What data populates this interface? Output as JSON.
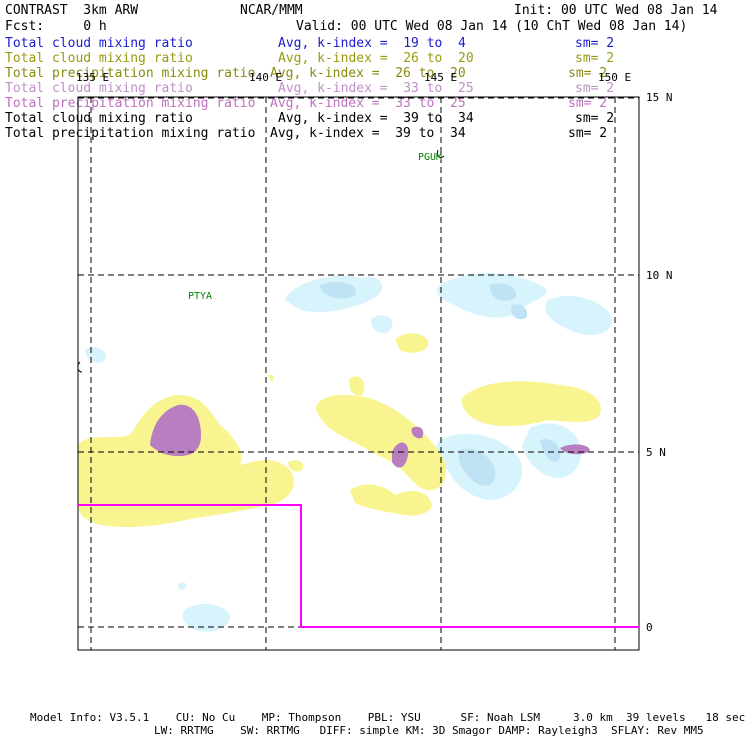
{
  "header": {
    "left_title": "CONTRAST  3km ARW",
    "center_title": "NCAR/MMM",
    "init": "Init: 00 UTC Wed 08 Jan 14",
    "fcst": "Fcst:     0 h",
    "valid": "Valid: 00 UTC Wed 08 Jan 14 (10 ChT Wed 08 Jan 14)"
  },
  "legend": [
    {
      "name": "Total cloud mixing ratio",
      "range": "Avg, k-index =  19 to  4",
      "sm": "sm= 2",
      "color": "#1a1ad0"
    },
    {
      "name": "Total cloud mixing ratio",
      "range": "Avg, k-index =  26 to  20",
      "sm": "sm= 2",
      "color": "#9a9a10"
    },
    {
      "name": "Total precipitation mixing ratio",
      "range": "Avg, k-index =  26 to  20",
      "sm": "sm= 2",
      "color": "#8a8a10"
    },
    {
      "name": "Total cloud mixing ratio",
      "range": "Avg, k-index =  33 to  25",
      "sm": "sm= 2",
      "color": "#c090c8"
    },
    {
      "name": "Total precipitation mixing ratio",
      "range": "Avg, k-index =  33 to  25",
      "sm": "sm= 2",
      "color": "#c070c0"
    },
    {
      "name": "Total cloud mixing ratio",
      "range": "Avg, k-index =  39 to  34",
      "sm": "sm= 2",
      "color": "#000000"
    },
    {
      "name": "Total precipitation mixing ratio",
      "range": "Avg, k-index =  39 to  34",
      "sm": "sm= 2",
      "color": "#000000"
    }
  ],
  "axes": {
    "lon_labels": [
      "135 E",
      "140 E",
      "145 E",
      "150 E"
    ],
    "lat_labels": [
      "15 N",
      "10 N",
      "5 N",
      "0"
    ]
  },
  "stations": [
    "PTYA",
    "PGUM"
  ],
  "colors": {
    "light_blue": "#d7f3fb",
    "mid_blue": "#bfe2f5",
    "yellow": "#f8f590",
    "purple": "#b97ebf",
    "boundary": "#ff00ff",
    "station": "#008000"
  },
  "footer": {
    "line1": "Model Info: V3.5.1    CU: No Cu    MP: Thompson    PBL: YSU      SF: Noah LSM     3.0 km  39 levels   18 sec",
    "line2": "LW: RRTMG    SW: RRTMG   DIFF: simple KM: 3D Smagor DAMP: Rayleigh3  SFLAY: Rev MM5"
  }
}
